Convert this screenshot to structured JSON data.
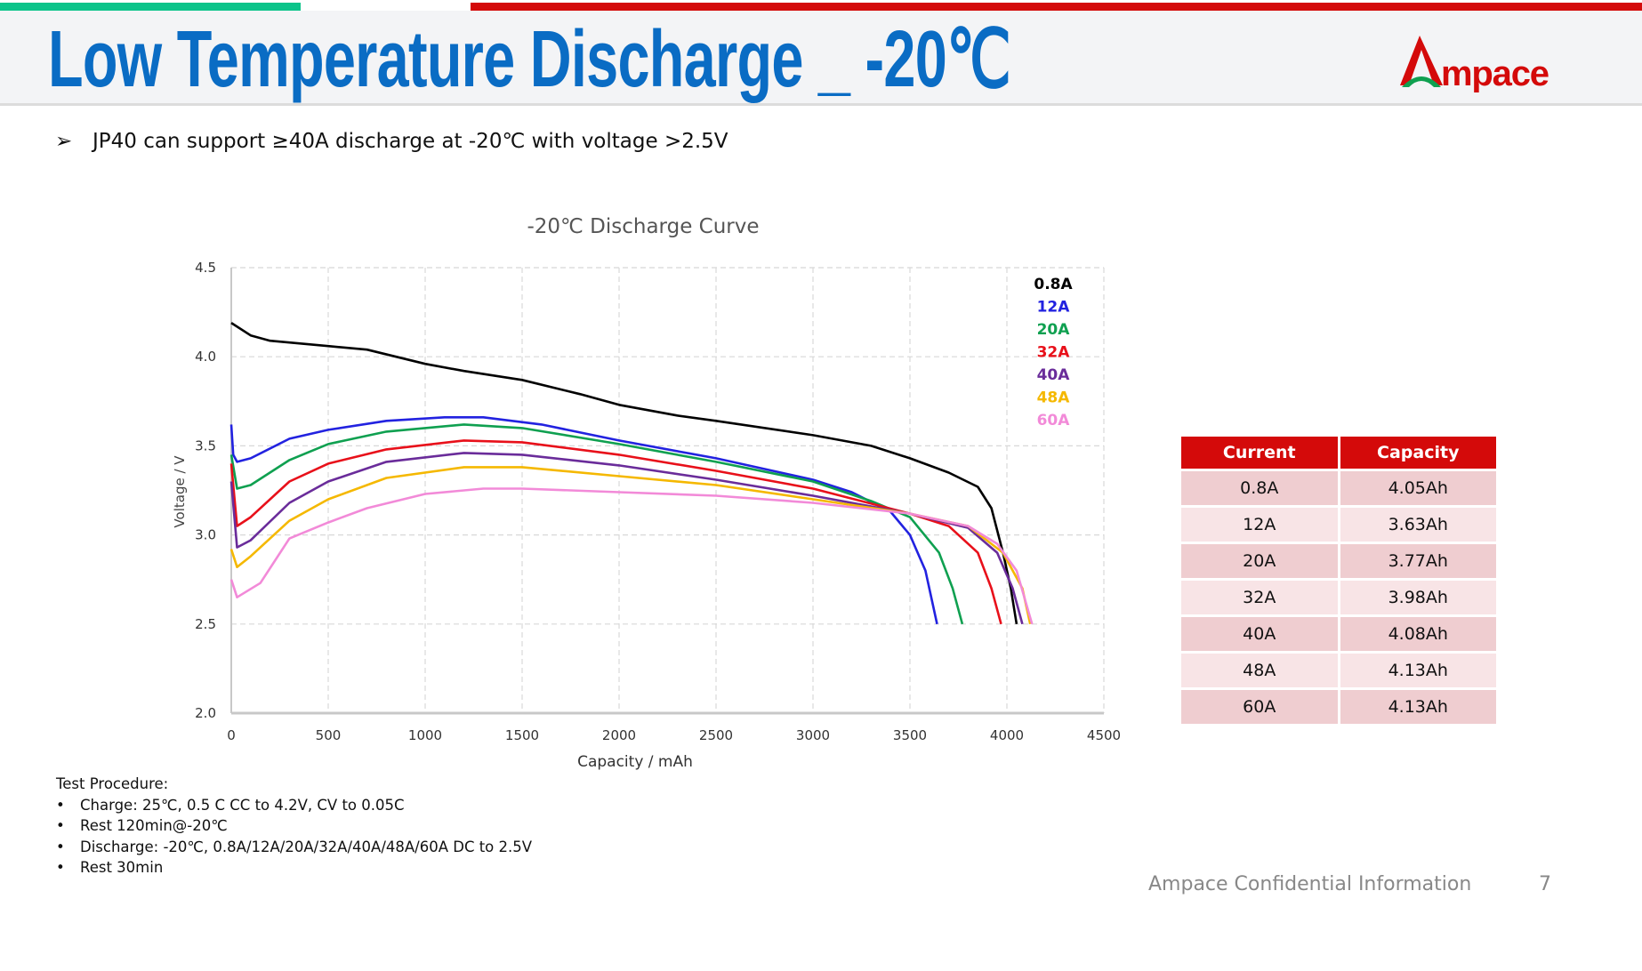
{
  "header": {
    "title": "Low Temperature Discharge _ -20℃",
    "logo_text": "Ampace",
    "accent_colors": {
      "green": "#0cc48a",
      "red": "#d40a0a",
      "title_blue": "#0a6cc4"
    }
  },
  "bullet": {
    "icon": "arrow-bullet-icon",
    "text": "JP40 can support ≥40A discharge at -20℃ with voltage >2.5V"
  },
  "chart_data": {
    "type": "line",
    "title": "-20℃ Discharge Curve",
    "xlabel": "Capacity / mAh",
    "ylabel": "Voltage / V",
    "xlim": [
      0,
      4500
    ],
    "ylim": [
      2.0,
      4.5
    ],
    "xticks": [
      0,
      500,
      1000,
      1500,
      2000,
      2500,
      3000,
      3500,
      4000,
      4500
    ],
    "yticks": [
      "2.0",
      "2.5",
      "3.0",
      "3.5",
      "4.0",
      "4.5"
    ],
    "grid": true,
    "legend_placement": "top-right",
    "series": [
      {
        "name": "0.8A",
        "color": "#000000",
        "points": [
          [
            0,
            4.19
          ],
          [
            100,
            4.12
          ],
          [
            200,
            4.09
          ],
          [
            500,
            4.06
          ],
          [
            700,
            4.04
          ],
          [
            1000,
            3.96
          ],
          [
            1200,
            3.92
          ],
          [
            1500,
            3.87
          ],
          [
            1800,
            3.79
          ],
          [
            2000,
            3.73
          ],
          [
            2300,
            3.67
          ],
          [
            2500,
            3.64
          ],
          [
            3000,
            3.56
          ],
          [
            3300,
            3.5
          ],
          [
            3500,
            3.43
          ],
          [
            3700,
            3.35
          ],
          [
            3850,
            3.27
          ],
          [
            3920,
            3.15
          ],
          [
            3980,
            2.9
          ],
          [
            4020,
            2.7
          ],
          [
            4050,
            2.5
          ]
        ]
      },
      {
        "name": "12A",
        "color": "#2222e0",
        "points": [
          [
            0,
            3.62
          ],
          [
            10,
            3.45
          ],
          [
            30,
            3.41
          ],
          [
            100,
            3.43
          ],
          [
            300,
            3.54
          ],
          [
            500,
            3.59
          ],
          [
            800,
            3.64
          ],
          [
            1100,
            3.66
          ],
          [
            1300,
            3.66
          ],
          [
            1600,
            3.62
          ],
          [
            2000,
            3.53
          ],
          [
            2500,
            3.43
          ],
          [
            3000,
            3.31
          ],
          [
            3200,
            3.24
          ],
          [
            3400,
            3.13
          ],
          [
            3500,
            3.0
          ],
          [
            3580,
            2.8
          ],
          [
            3640,
            2.5
          ]
        ]
      },
      {
        "name": "20A",
        "color": "#0fa050",
        "points": [
          [
            0,
            3.45
          ],
          [
            30,
            3.26
          ],
          [
            100,
            3.28
          ],
          [
            300,
            3.42
          ],
          [
            500,
            3.51
          ],
          [
            800,
            3.58
          ],
          [
            1200,
            3.62
          ],
          [
            1500,
            3.6
          ],
          [
            2000,
            3.51
          ],
          [
            2500,
            3.41
          ],
          [
            3000,
            3.3
          ],
          [
            3300,
            3.19
          ],
          [
            3500,
            3.1
          ],
          [
            3650,
            2.9
          ],
          [
            3720,
            2.7
          ],
          [
            3770,
            2.5
          ]
        ]
      },
      {
        "name": "32A",
        "color": "#e8101a",
        "points": [
          [
            0,
            3.4
          ],
          [
            30,
            3.05
          ],
          [
            100,
            3.1
          ],
          [
            300,
            3.3
          ],
          [
            500,
            3.4
          ],
          [
            800,
            3.48
          ],
          [
            1200,
            3.53
          ],
          [
            1500,
            3.52
          ],
          [
            2000,
            3.45
          ],
          [
            2500,
            3.36
          ],
          [
            3000,
            3.26
          ],
          [
            3500,
            3.12
          ],
          [
            3700,
            3.05
          ],
          [
            3850,
            2.9
          ],
          [
            3920,
            2.7
          ],
          [
            3970,
            2.5
          ]
        ]
      },
      {
        "name": "40A",
        "color": "#6a2c9a",
        "points": [
          [
            0,
            3.3
          ],
          [
            30,
            2.93
          ],
          [
            100,
            2.97
          ],
          [
            300,
            3.18
          ],
          [
            500,
            3.3
          ],
          [
            800,
            3.41
          ],
          [
            1200,
            3.46
          ],
          [
            1500,
            3.45
          ],
          [
            2000,
            3.39
          ],
          [
            2500,
            3.31
          ],
          [
            3000,
            3.22
          ],
          [
            3500,
            3.12
          ],
          [
            3800,
            3.04
          ],
          [
            3950,
            2.9
          ],
          [
            4030,
            2.7
          ],
          [
            4080,
            2.5
          ]
        ]
      },
      {
        "name": "48A",
        "color": "#f5b800",
        "points": [
          [
            0,
            2.92
          ],
          [
            30,
            2.82
          ],
          [
            100,
            2.88
          ],
          [
            300,
            3.08
          ],
          [
            500,
            3.2
          ],
          [
            800,
            3.32
          ],
          [
            1200,
            3.38
          ],
          [
            1500,
            3.38
          ],
          [
            2000,
            3.33
          ],
          [
            2500,
            3.28
          ],
          [
            3000,
            3.2
          ],
          [
            3500,
            3.12
          ],
          [
            3800,
            3.05
          ],
          [
            3980,
            2.9
          ],
          [
            4080,
            2.7
          ],
          [
            4120,
            2.5
          ]
        ]
      },
      {
        "name": "60A",
        "color": "#f28ad8",
        "points": [
          [
            0,
            2.75
          ],
          [
            30,
            2.65
          ],
          [
            150,
            2.73
          ],
          [
            300,
            2.98
          ],
          [
            500,
            3.07
          ],
          [
            700,
            3.15
          ],
          [
            1000,
            3.23
          ],
          [
            1300,
            3.26
          ],
          [
            1500,
            3.26
          ],
          [
            2000,
            3.24
          ],
          [
            2500,
            3.22
          ],
          [
            3000,
            3.18
          ],
          [
            3500,
            3.12
          ],
          [
            3800,
            3.05
          ],
          [
            3950,
            2.95
          ],
          [
            4050,
            2.8
          ],
          [
            4130,
            2.5
          ]
        ]
      }
    ]
  },
  "table": {
    "headers": [
      "Current",
      "Capacity"
    ],
    "rows": [
      [
        "0.8A",
        "4.05Ah"
      ],
      [
        "12A",
        "3.63Ah"
      ],
      [
        "20A",
        "3.77Ah"
      ],
      [
        "32A",
        "3.98Ah"
      ],
      [
        "40A",
        "4.08Ah"
      ],
      [
        "48A",
        "4.13Ah"
      ],
      [
        "60A",
        "4.13Ah"
      ]
    ]
  },
  "procedure": {
    "title": "Test Procedure:",
    "items": [
      "Charge: 25℃, 0.5 C CC to 4.2V,  CV to 0.05C",
      "Rest 120min@-20℃",
      "Discharge: -20℃, 0.8A/12A/20A/32A/40A/48A/60A DC to 2.5V",
      "Rest 30min"
    ]
  },
  "footer": {
    "text": "Ampace Confidential Information",
    "page": "7"
  }
}
